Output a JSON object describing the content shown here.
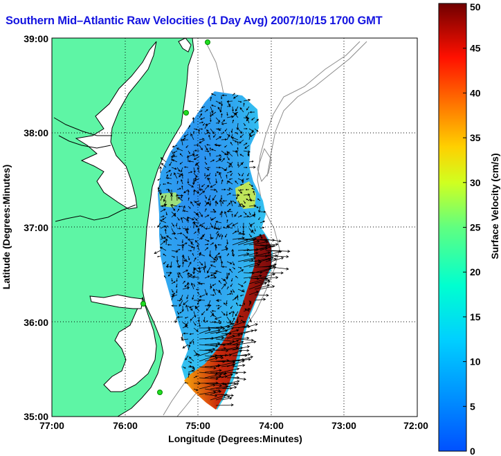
{
  "title": "Southern Mid–Atlantic Raw Velocities (1 Day Avg) 2007/10/15 1700 GMT",
  "map": {
    "xlabel": "Longitude (Degrees:Minutes)",
    "ylabel": "Latitude (Degrees:Minutes)",
    "lon_ticks": [
      "77:00",
      "76:00",
      "75:00",
      "74:00",
      "73:00",
      "72:00"
    ],
    "lat_ticks": [
      "39:00",
      "38:00",
      "37:00",
      "36:00",
      "35:00"
    ],
    "lon_range_deg_west": [
      77,
      72
    ],
    "lat_range_deg_north": [
      35,
      39
    ],
    "grid": "dotted",
    "colors": {
      "land": "#5ef5a5",
      "coastline": "#000000",
      "bathymetry_contour": "#8a8a8a",
      "vectors": "#000000",
      "site_marker": "#22dd22"
    }
  },
  "colorbar": {
    "label": "Surface Velocity (cm/s)",
    "ticks": [
      "0",
      "5",
      "10",
      "15",
      "20",
      "25",
      "30",
      "35",
      "40",
      "45",
      "50"
    ],
    "range": [
      0,
      50
    ],
    "colormap": "jet"
  }
}
